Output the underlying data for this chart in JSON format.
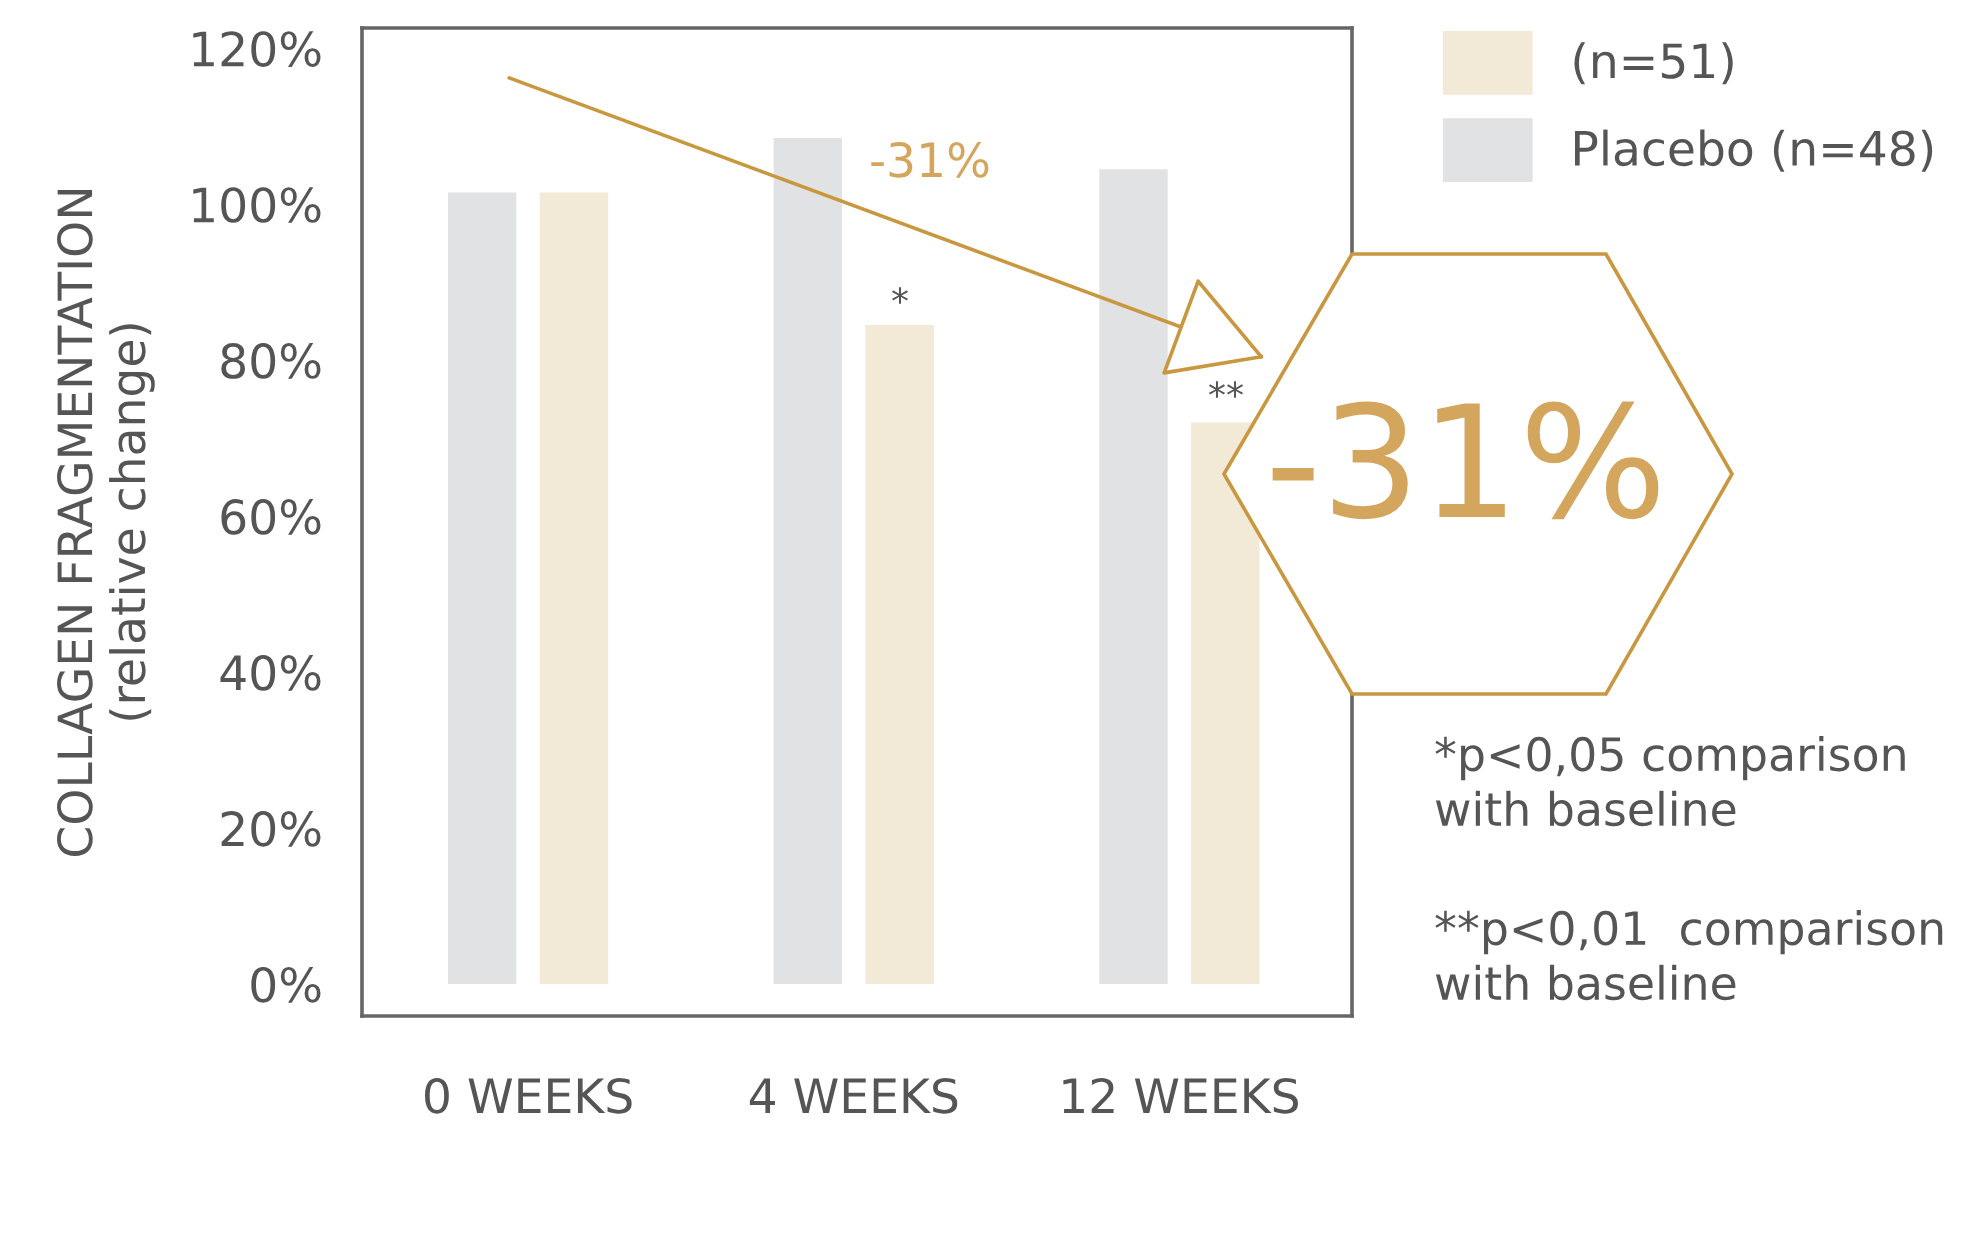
{
  "chart_data": {
    "type": "bar",
    "ylabel": "COLLAGEN FRAGMENTATION\n(relative change)",
    "categories": [
      "0 WEEKS",
      "4 WEEKS",
      "12 WEEKS"
    ],
    "series": [
      {
        "name": "Placebo (n=48)",
        "color": "#e1e2e4",
        "values": [
          101.5,
          108.5,
          104.5
        ]
      },
      {
        "name": "(n=51)",
        "color": "#f2e9d7",
        "values": [
          101.5,
          84.5,
          72
        ]
      }
    ],
    "ylim": [
      -4.1,
      122.6
    ],
    "yticks": [
      {
        "value": 0,
        "label": "0%"
      },
      {
        "value": 20,
        "label": "20%"
      },
      {
        "value": 40,
        "label": "40%"
      },
      {
        "value": 60,
        "label": "60%"
      },
      {
        "value": 80,
        "label": "80%"
      },
      {
        "value": 100,
        "label": "100%"
      },
      {
        "value": 120,
        "label": "120%"
      }
    ],
    "annotations": [
      "*",
      "**",
      "-31%",
      "-31%",
      "*p<0,05 comparison\nwith baseline",
      "**p<0,01  comparison\nwith baseline"
    ],
    "legend": "top right",
    "grid": false
  }
}
